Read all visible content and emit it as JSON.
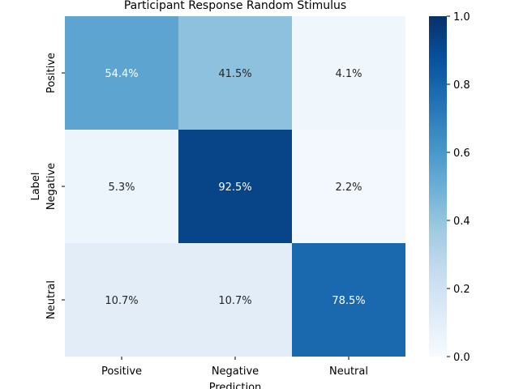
{
  "chart_data": {
    "type": "heatmap",
    "title": "Participant Response Random Stimulus",
    "xlabel": "Prediction",
    "ylabel": "Label",
    "x_categories": [
      "Positive",
      "Negative",
      "Neutral"
    ],
    "y_categories": [
      "Positive",
      "Negative",
      "Neutral"
    ],
    "values": [
      [
        0.544,
        0.415,
        0.041
      ],
      [
        0.053,
        0.925,
        0.022
      ],
      [
        0.107,
        0.107,
        0.785
      ]
    ],
    "annotations": [
      [
        "54.4%",
        "41.5%",
        "4.1%"
      ],
      [
        "5.3%",
        "92.5%",
        "2.2%"
      ],
      [
        "10.7%",
        "10.7%",
        "78.5%"
      ]
    ],
    "colormap": "Blues",
    "vmin": 0.0,
    "vmax": 1.0,
    "colorbar_ticks": [
      "0.0",
      "0.2",
      "0.4",
      "0.6",
      "0.8",
      "1.0"
    ],
    "grid": false
  }
}
